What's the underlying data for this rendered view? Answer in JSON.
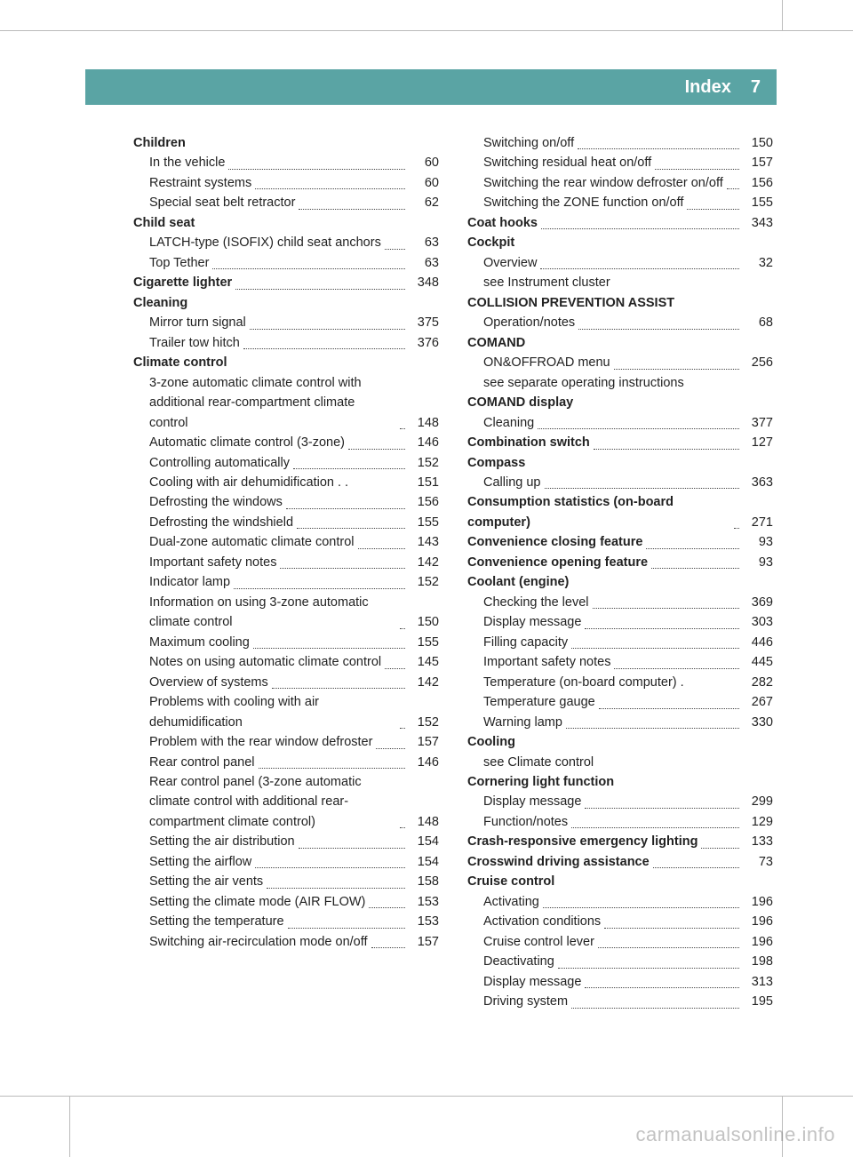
{
  "header": {
    "title": "Index",
    "page": "7"
  },
  "colors": {
    "band": "#5aa4a4",
    "text": "#222222",
    "bg": "#ffffff"
  },
  "watermark": "carmanualsonline.info",
  "left": [
    {
      "type": "heading",
      "text": "Children"
    },
    {
      "type": "sub",
      "text": "In the vehicle",
      "page": "60"
    },
    {
      "type": "sub",
      "text": "Restraint systems",
      "page": "60"
    },
    {
      "type": "sub",
      "text": "Special seat belt retractor",
      "page": "62"
    },
    {
      "type": "heading",
      "text": "Child seat"
    },
    {
      "type": "sub",
      "text": "LATCH-type (ISOFIX) child seat anchors",
      "page": "63"
    },
    {
      "type": "sub",
      "text": "Top Tether",
      "page": "63"
    },
    {
      "type": "bold",
      "text": "Cigarette lighter",
      "page": "348"
    },
    {
      "type": "heading",
      "text": "Cleaning"
    },
    {
      "type": "sub",
      "text": "Mirror turn signal",
      "page": "375"
    },
    {
      "type": "sub",
      "text": "Trailer tow hitch",
      "page": "376"
    },
    {
      "type": "heading",
      "text": "Climate control"
    },
    {
      "type": "sub",
      "text": "3-zone automatic climate control with additional rear-compartment climate control",
      "page": "148"
    },
    {
      "type": "sub",
      "text": "Automatic climate control (3-zone)",
      "page": "146"
    },
    {
      "type": "sub",
      "text": "Controlling automatically",
      "page": "152"
    },
    {
      "type": "sub",
      "text": "Cooling with air dehumidification . .",
      "page": "151",
      "nodots": true
    },
    {
      "type": "sub",
      "text": "Defrosting the windows",
      "page": "156"
    },
    {
      "type": "sub",
      "text": "Defrosting the windshield",
      "page": "155"
    },
    {
      "type": "sub",
      "text": "Dual-zone automatic climate control",
      "page": "143"
    },
    {
      "type": "sub",
      "text": "Important safety notes",
      "page": "142"
    },
    {
      "type": "sub",
      "text": "Indicator lamp",
      "page": "152"
    },
    {
      "type": "sub",
      "text": "Information on using 3-zone automatic climate control",
      "page": "150"
    },
    {
      "type": "sub",
      "text": "Maximum cooling",
      "page": "155"
    },
    {
      "type": "sub",
      "text": "Notes on using automatic climate control",
      "page": "145"
    },
    {
      "type": "sub",
      "text": "Overview of systems",
      "page": "142"
    },
    {
      "type": "sub",
      "text": "Problems with cooling with air dehumidification",
      "page": "152"
    },
    {
      "type": "sub",
      "text": "Problem with the rear window defroster",
      "page": "157"
    },
    {
      "type": "sub",
      "text": "Rear control panel",
      "page": "146"
    },
    {
      "type": "sub",
      "text": "Rear control panel (3-zone automatic climate control with additional rear-compartment climate control)",
      "page": "148"
    },
    {
      "type": "sub",
      "text": "Setting the air distribution",
      "page": "154"
    },
    {
      "type": "sub",
      "text": "Setting the airflow",
      "page": "154"
    },
    {
      "type": "sub",
      "text": "Setting the air vents",
      "page": "158"
    },
    {
      "type": "sub",
      "text": "Setting the climate mode (AIR FLOW)",
      "page": "153"
    },
    {
      "type": "sub",
      "text": "Setting the temperature",
      "page": "153"
    },
    {
      "type": "sub",
      "text": "Switching air-recirculation mode on/off",
      "page": "157"
    }
  ],
  "right": [
    {
      "type": "sub",
      "text": "Switching on/off",
      "page": "150"
    },
    {
      "type": "sub",
      "text": "Switching residual heat on/off",
      "page": "157"
    },
    {
      "type": "sub",
      "text": "Switching the rear window defroster on/off",
      "page": "156"
    },
    {
      "type": "sub",
      "text": "Switching the ZONE function on/off",
      "page": "155"
    },
    {
      "type": "bold",
      "text": "Coat hooks",
      "page": "343"
    },
    {
      "type": "heading",
      "text": "Cockpit"
    },
    {
      "type": "sub",
      "text": "Overview",
      "page": "32"
    },
    {
      "type": "noref",
      "text": "see Instrument cluster"
    },
    {
      "type": "heading",
      "text": "COLLISION PREVENTION ASSIST"
    },
    {
      "type": "sub",
      "text": "Operation/notes",
      "page": "68"
    },
    {
      "type": "heading",
      "text": "COMAND"
    },
    {
      "type": "sub",
      "text": "ON&OFFROAD menu",
      "page": "256"
    },
    {
      "type": "noref",
      "text": "see separate operating instructions"
    },
    {
      "type": "heading",
      "text": "COMAND display"
    },
    {
      "type": "sub",
      "text": "Cleaning",
      "page": "377"
    },
    {
      "type": "bold",
      "text": "Combination switch",
      "page": "127"
    },
    {
      "type": "heading",
      "text": "Compass"
    },
    {
      "type": "sub",
      "text": "Calling up",
      "page": "363"
    },
    {
      "type": "bold",
      "text": "Consumption statistics (on-board computer)",
      "page": "271"
    },
    {
      "type": "bold",
      "text": "Convenience closing feature",
      "page": "93"
    },
    {
      "type": "bold",
      "text": "Convenience opening feature",
      "page": "93"
    },
    {
      "type": "heading",
      "text": "Coolant (engine)"
    },
    {
      "type": "sub",
      "text": "Checking the level",
      "page": "369"
    },
    {
      "type": "sub",
      "text": "Display message",
      "page": "303"
    },
    {
      "type": "sub",
      "text": "Filling capacity",
      "page": "446"
    },
    {
      "type": "sub",
      "text": "Important safety notes",
      "page": "445"
    },
    {
      "type": "sub",
      "text": "Temperature (on-board computer) .",
      "page": "282",
      "nodots": true
    },
    {
      "type": "sub",
      "text": "Temperature gauge",
      "page": "267"
    },
    {
      "type": "sub",
      "text": "Warning lamp",
      "page": "330"
    },
    {
      "type": "heading",
      "text": "Cooling"
    },
    {
      "type": "noref",
      "text": "see Climate control"
    },
    {
      "type": "heading",
      "text": "Cornering light function"
    },
    {
      "type": "sub",
      "text": "Display message",
      "page": "299"
    },
    {
      "type": "sub",
      "text": "Function/notes",
      "page": "129"
    },
    {
      "type": "bold",
      "text": "Crash-responsive emergency lighting",
      "page": "133"
    },
    {
      "type": "bold",
      "text": "Crosswind driving assistance",
      "page": "73"
    },
    {
      "type": "heading",
      "text": "Cruise control"
    },
    {
      "type": "sub",
      "text": "Activating",
      "page": "196"
    },
    {
      "type": "sub",
      "text": "Activation conditions",
      "page": "196"
    },
    {
      "type": "sub",
      "text": "Cruise control lever",
      "page": "196"
    },
    {
      "type": "sub",
      "text": "Deactivating",
      "page": "198"
    },
    {
      "type": "sub",
      "text": "Display message",
      "page": "313"
    },
    {
      "type": "sub",
      "text": "Driving system",
      "page": "195"
    }
  ]
}
